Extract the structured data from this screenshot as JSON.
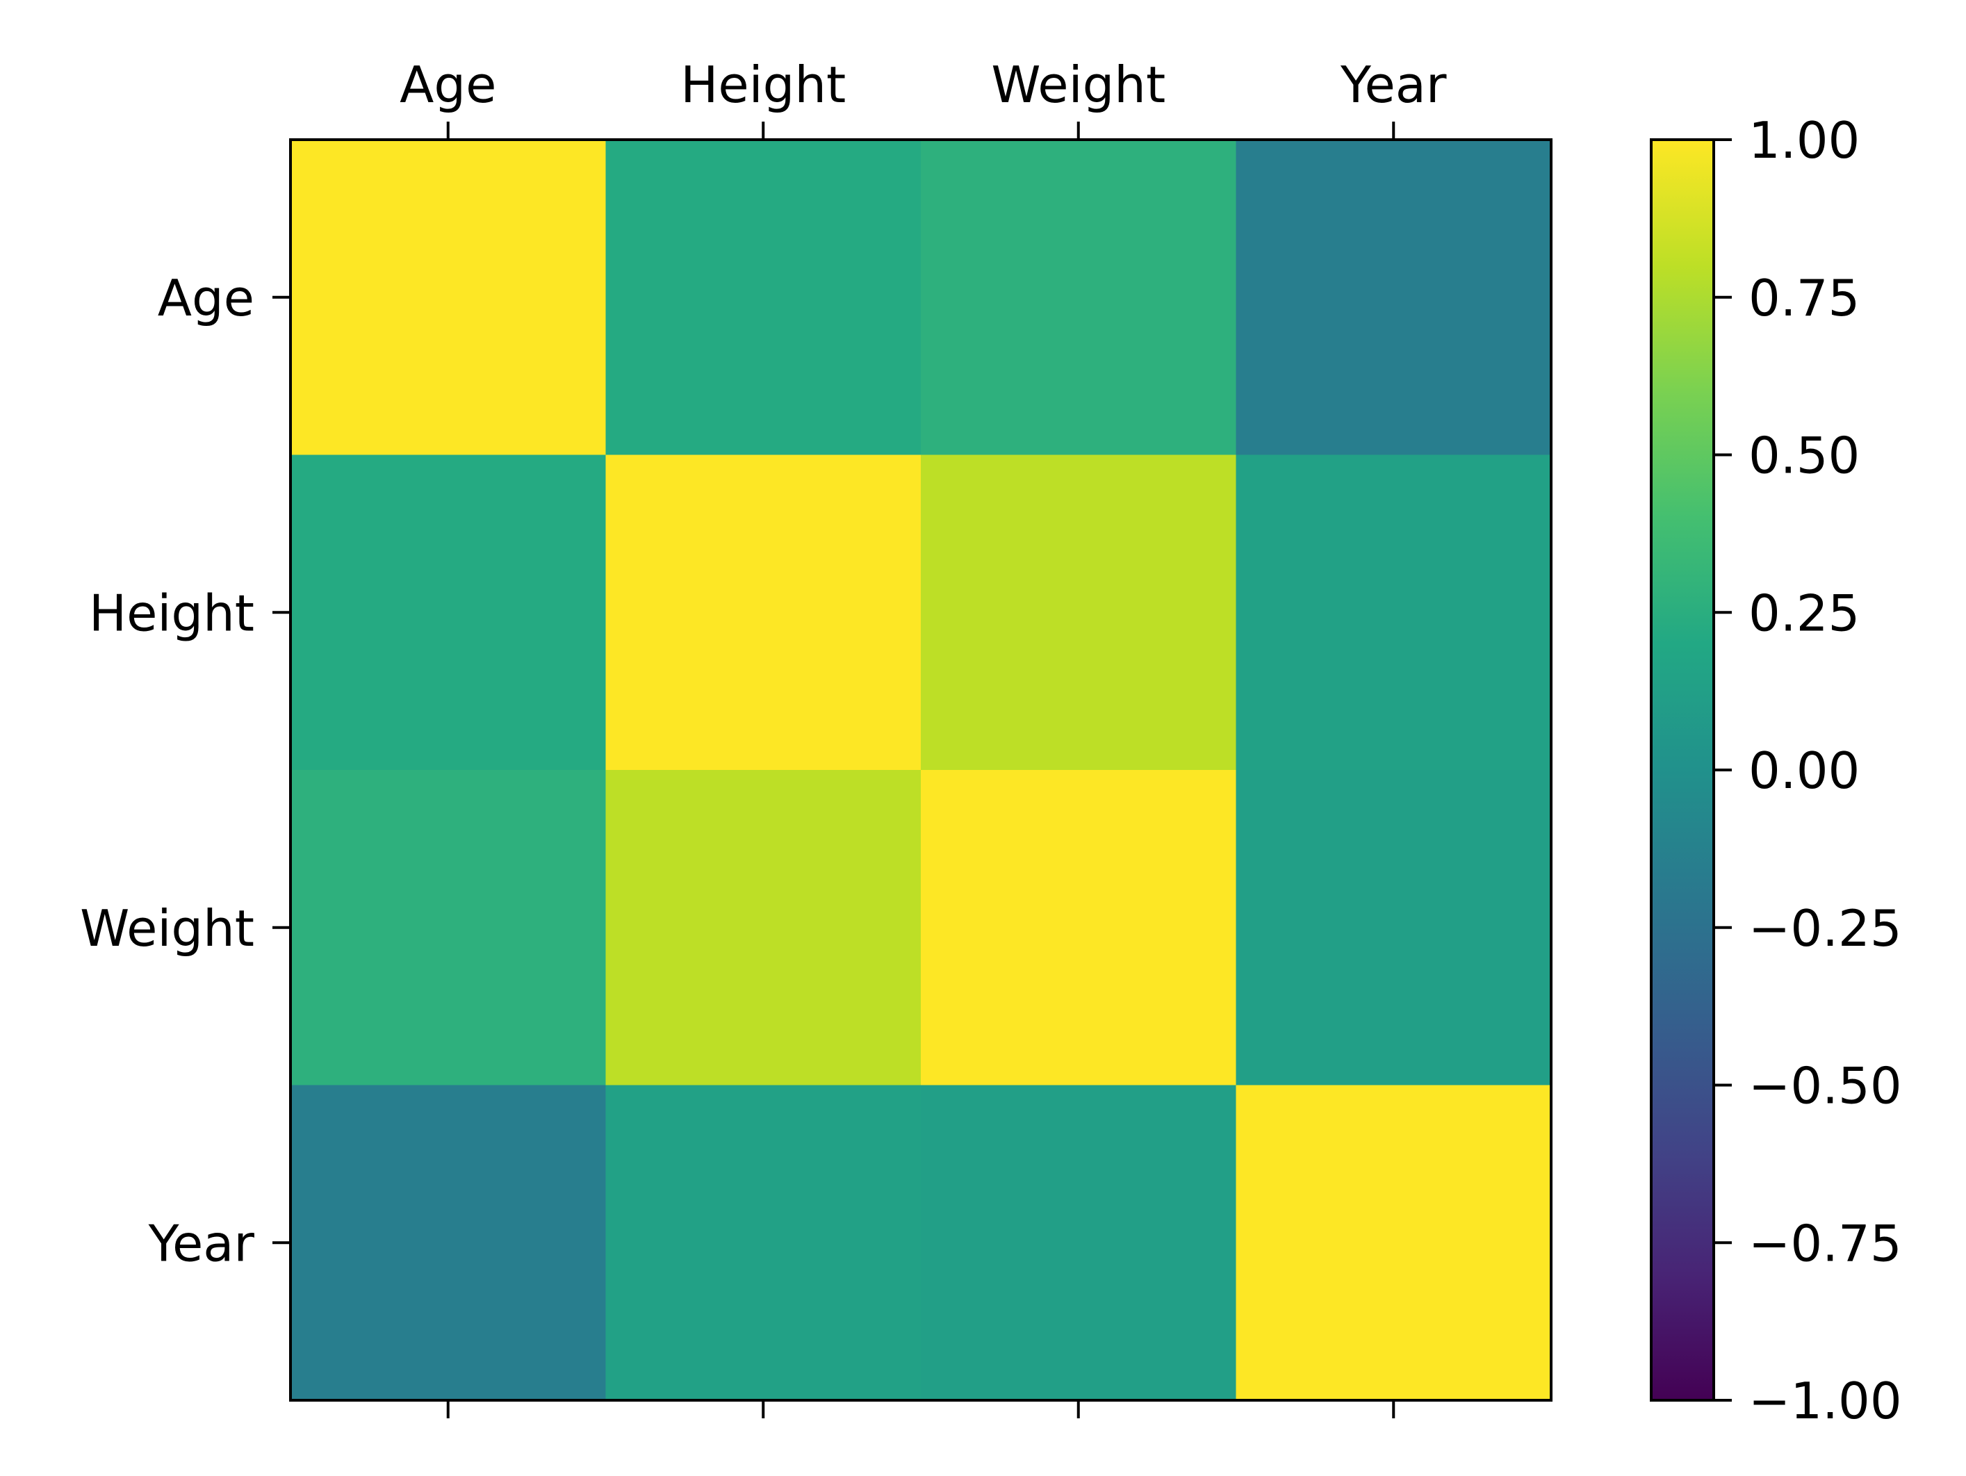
{
  "chart_data": {
    "type": "heatmap",
    "row_labels": [
      "Age",
      "Height",
      "Weight",
      "Year"
    ],
    "col_labels": [
      "Age",
      "Height",
      "Weight",
      "Year"
    ],
    "values": [
      [
        1.0,
        0.22,
        0.27,
        -0.15
      ],
      [
        0.22,
        1.0,
        0.8,
        0.14
      ],
      [
        0.27,
        0.8,
        1.0,
        0.12
      ],
      [
        -0.15,
        0.14,
        0.12,
        1.0
      ]
    ],
    "colorscale": "viridis",
    "vmin": -1.0,
    "vmax": 1.0,
    "colorbar": {
      "ticks": [
        1.0,
        0.75,
        0.5,
        0.25,
        0.0,
        -0.25,
        -0.5,
        -0.75,
        -1.0
      ],
      "tick_labels": [
        "1.00",
        "0.75",
        "0.50",
        "0.25",
        "0.00",
        "−0.25",
        "−0.50",
        "−0.75",
        "−1.00"
      ]
    },
    "x_tick_position": "top",
    "grid": false,
    "legend": "colorbar-right"
  }
}
